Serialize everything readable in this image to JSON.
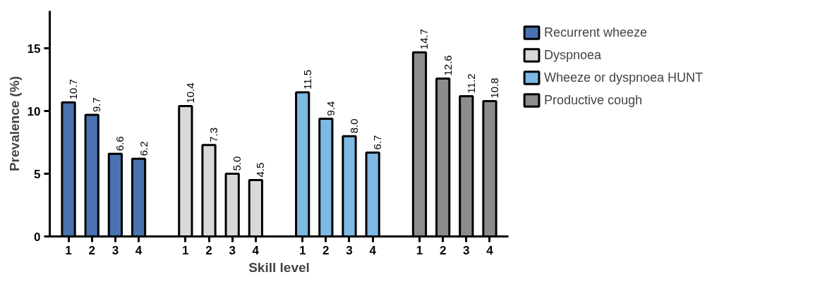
{
  "chart_data": {
    "type": "bar",
    "xlabel": "Skill level",
    "ylabel": "Prevalence (%)",
    "categories": [
      "1",
      "2",
      "3",
      "4",
      null,
      "1",
      "2",
      "3",
      "4",
      null,
      "1",
      "2",
      "3",
      "4",
      null,
      "1",
      "2",
      "3",
      "4"
    ],
    "series": [
      {
        "name": "Recurrent wheeze",
        "color": "#4a72b0",
        "values": [
          10.7,
          9.7,
          6.6,
          6.2,
          null,
          null,
          null,
          null,
          null,
          null,
          null,
          null,
          null,
          null,
          null,
          null,
          null,
          null,
          null
        ],
        "value_labels": [
          "10.7",
          "9.7",
          "6.6",
          "6.2",
          null,
          null,
          null,
          null,
          null,
          null,
          null,
          null,
          null,
          null,
          null,
          null,
          null,
          null,
          null
        ]
      },
      {
        "name": "Dyspnoea",
        "color": "#d9d9d9",
        "values": [
          null,
          null,
          null,
          null,
          null,
          10.4,
          7.3,
          5.0,
          4.5,
          null,
          null,
          null,
          null,
          null,
          null,
          null,
          null,
          null,
          null
        ],
        "value_labels": [
          null,
          null,
          null,
          null,
          null,
          "10.4",
          "7.3",
          "5.0",
          "4.5",
          null,
          null,
          null,
          null,
          null,
          null,
          null,
          null,
          null,
          null
        ]
      },
      {
        "name": "Wheeze or dyspnoea HUNT",
        "color": "#7db9e3",
        "values": [
          null,
          null,
          null,
          null,
          null,
          null,
          null,
          null,
          null,
          null,
          11.5,
          9.4,
          8.0,
          6.7,
          null,
          null,
          null,
          null,
          null
        ],
        "value_labels": [
          null,
          null,
          null,
          null,
          null,
          null,
          null,
          null,
          null,
          null,
          "11.5",
          "9.4",
          "8.0",
          "6.7",
          null,
          null,
          null,
          null,
          null
        ]
      },
      {
        "name": "Productive cough",
        "color": "#8c8c8c",
        "values": [
          null,
          null,
          null,
          null,
          null,
          null,
          null,
          null,
          null,
          null,
          null,
          null,
          null,
          null,
          null,
          14.7,
          12.6,
          11.2,
          10.8
        ],
        "value_labels": [
          null,
          null,
          null,
          null,
          null,
          null,
          null,
          null,
          null,
          null,
          null,
          null,
          null,
          null,
          null,
          "14.7",
          "12.6",
          "11.2",
          "10.8"
        ]
      }
    ],
    "ylim": [
      0,
      18
    ],
    "yticks": [
      0,
      5,
      10,
      15
    ],
    "grid": false,
    "legend": "right"
  }
}
